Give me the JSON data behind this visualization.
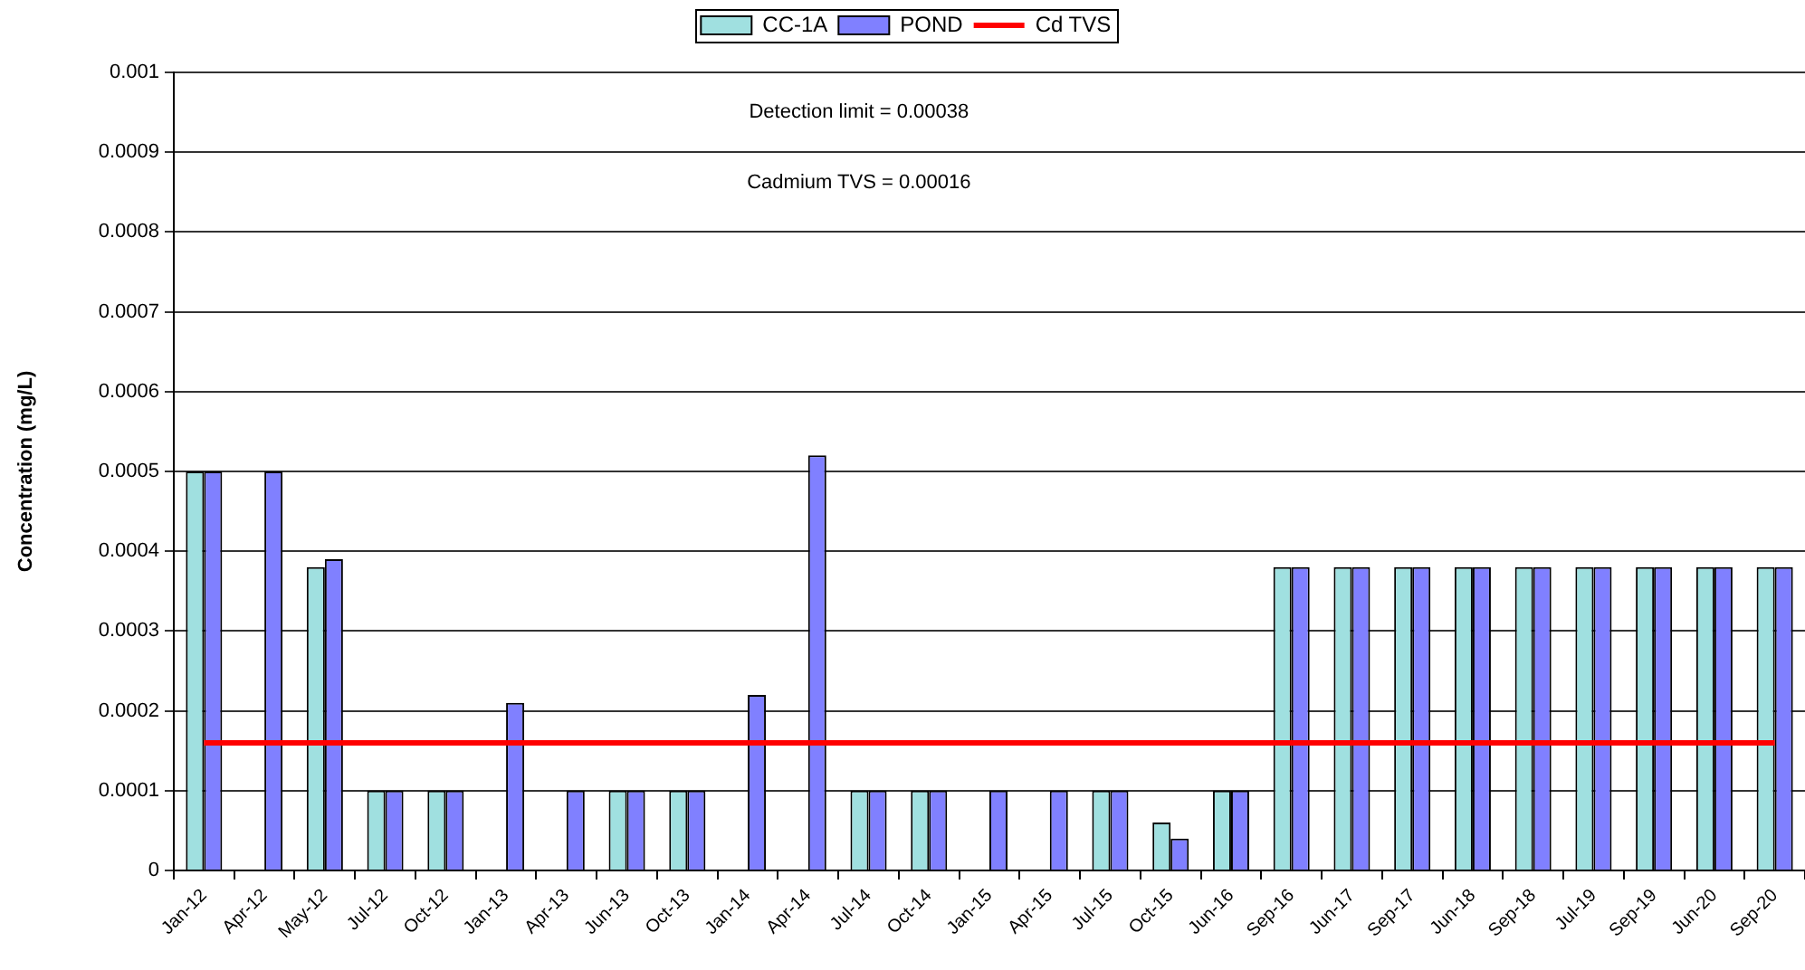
{
  "chart_data": {
    "type": "bar",
    "categories": [
      "Jan-12",
      "Apr-12",
      "May-12",
      "Jul-12",
      "Oct-12",
      "Jan-13",
      "Apr-13",
      "Jun-13",
      "Oct-13",
      "Jan-14",
      "Apr-14",
      "Jul-14",
      "Oct-14",
      "Jan-15",
      "Apr-15",
      "Jul-15",
      "Oct-15",
      "Jun-16",
      "Sep-16",
      "Jun-17",
      "Sep-17",
      "Jun-18",
      "Sep-18",
      "Jul-19",
      "Sep-19",
      "Jun-20",
      "Sep-20"
    ],
    "series": [
      {
        "name": "CC-1A",
        "color": "#a0e0e0",
        "values": [
          0.0005,
          null,
          0.00038,
          0.0001,
          0.0001,
          null,
          null,
          0.0001,
          0.0001,
          null,
          null,
          0.0001,
          0.0001,
          null,
          null,
          0.0001,
          6e-05,
          0.0001,
          0.00038,
          0.00038,
          0.00038,
          0.00038,
          0.00038,
          0.00038,
          0.00038,
          0.00038,
          0.00038
        ]
      },
      {
        "name": "POND",
        "color": "#8080ff",
        "values": [
          0.0005,
          0.0005,
          0.00039,
          0.0001,
          0.0001,
          0.00021,
          0.0001,
          0.0001,
          0.0001,
          0.00022,
          0.00052,
          0.0001,
          0.0001,
          0.0001,
          0.0001,
          0.0001,
          4e-05,
          0.0001,
          0.00038,
          0.00038,
          0.00038,
          0.00038,
          0.00038,
          0.00038,
          0.00038,
          0.00038,
          0.00038
        ]
      },
      {
        "name": "Cd TVS",
        "type": "line",
        "color": "#ff0000",
        "values": [
          0.00016,
          0.00016,
          0.00016,
          0.00016,
          0.00016,
          0.00016,
          0.00016,
          0.00016,
          0.00016,
          0.00016,
          0.00016,
          0.00016,
          0.00016,
          0.00016,
          0.00016,
          0.00016,
          0.00016,
          0.00016,
          0.00016,
          0.00016,
          0.00016,
          0.00016,
          0.00016,
          0.00016,
          0.00016,
          0.00016,
          0.00016
        ]
      }
    ],
    "ylabel": "Concentration (mg/L)",
    "ylim": [
      0,
      0.001
    ],
    "yticks": [
      0,
      0.0001,
      0.0002,
      0.0003,
      0.0004,
      0.0005,
      0.0006,
      0.0007,
      0.0008,
      0.0009,
      0.001
    ],
    "annotations": [
      "Detection limit = 0.00038",
      "Cadmium TVS = 0.00016"
    ],
    "grid": "y",
    "legend": "top"
  }
}
